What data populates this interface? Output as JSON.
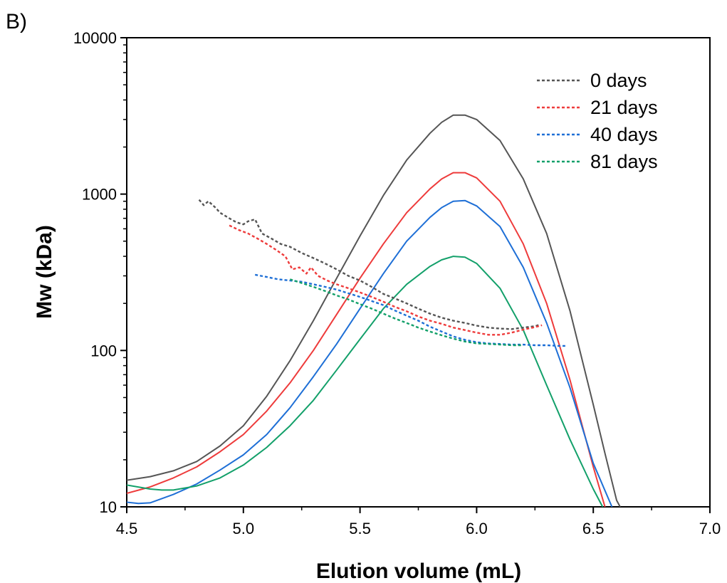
{
  "panel_label": "B)",
  "chart_data": {
    "type": "line",
    "title": "",
    "xlabel": "Elution volume (mL)",
    "ylabel": "Mw (kDa)",
    "xlim": [
      4.5,
      7.0
    ],
    "ylim": [
      10,
      10000
    ],
    "yscale": "log",
    "grid": false,
    "legend_position": "top-right",
    "x_ticks": [
      "4.5",
      "5.0",
      "5.5",
      "6.0",
      "6.5",
      "7.0"
    ],
    "y_ticks": [
      "10",
      "100",
      "1000",
      "10000"
    ],
    "legend": [
      {
        "label": "0 days",
        "color": "#555555"
      },
      {
        "label": "21 days",
        "color": "#ee3b3b"
      },
      {
        "label": "40 days",
        "color": "#1e6fd6"
      },
      {
        "label": "81 days",
        "color": "#13a06a"
      }
    ],
    "series": [
      {
        "name": "0 days",
        "kind": "mw",
        "style": "dotted",
        "color": "#555555",
        "points": [
          [
            4.81,
            920
          ],
          [
            4.83,
            850
          ],
          [
            4.85,
            900
          ],
          [
            4.88,
            820
          ],
          [
            4.9,
            760
          ],
          [
            4.94,
            700
          ],
          [
            4.97,
            660
          ],
          [
            5.0,
            640
          ],
          [
            5.02,
            670
          ],
          [
            5.05,
            690
          ],
          [
            5.08,
            560
          ],
          [
            5.12,
            520
          ],
          [
            5.16,
            480
          ],
          [
            5.2,
            460
          ],
          [
            5.25,
            420
          ],
          [
            5.3,
            390
          ],
          [
            5.35,
            360
          ],
          [
            5.4,
            330
          ],
          [
            5.45,
            300
          ],
          [
            5.5,
            280
          ],
          [
            5.55,
            255
          ],
          [
            5.6,
            230
          ],
          [
            5.65,
            215
          ],
          [
            5.7,
            200
          ],
          [
            5.75,
            185
          ],
          [
            5.8,
            172
          ],
          [
            5.85,
            162
          ],
          [
            5.9,
            155
          ],
          [
            5.95,
            150
          ],
          [
            6.0,
            144
          ],
          [
            6.05,
            140
          ],
          [
            6.1,
            138
          ],
          [
            6.15,
            137
          ],
          [
            6.2,
            140
          ],
          [
            6.25,
            143
          ],
          [
            6.27,
            146
          ]
        ]
      },
      {
        "name": "21 days",
        "kind": "mw",
        "style": "dotted",
        "color": "#ee3b3b",
        "points": [
          [
            4.94,
            630
          ],
          [
            4.98,
            590
          ],
          [
            5.02,
            560
          ],
          [
            5.06,
            520
          ],
          [
            5.1,
            480
          ],
          [
            5.14,
            440
          ],
          [
            5.18,
            400
          ],
          [
            5.21,
            330
          ],
          [
            5.24,
            340
          ],
          [
            5.27,
            310
          ],
          [
            5.29,
            340
          ],
          [
            5.32,
            300
          ],
          [
            5.36,
            280
          ],
          [
            5.4,
            265
          ],
          [
            5.45,
            250
          ],
          [
            5.5,
            235
          ],
          [
            5.55,
            220
          ],
          [
            5.6,
            205
          ],
          [
            5.65,
            190
          ],
          [
            5.7,
            178
          ],
          [
            5.75,
            165
          ],
          [
            5.8,
            155
          ],
          [
            5.85,
            148
          ],
          [
            5.9,
            140
          ],
          [
            5.95,
            135
          ],
          [
            6.0,
            130
          ],
          [
            6.05,
            126
          ],
          [
            6.1,
            126
          ],
          [
            6.15,
            130
          ],
          [
            6.2,
            136
          ],
          [
            6.25,
            141
          ],
          [
            6.28,
            145
          ]
        ]
      },
      {
        "name": "40 days",
        "kind": "mw",
        "style": "dotted",
        "color": "#1e6fd6",
        "points": [
          [
            5.05,
            305
          ],
          [
            5.1,
            295
          ],
          [
            5.15,
            285
          ],
          [
            5.2,
            280
          ],
          [
            5.25,
            275
          ],
          [
            5.3,
            265
          ],
          [
            5.35,
            255
          ],
          [
            5.4,
            245
          ],
          [
            5.45,
            232
          ],
          [
            5.5,
            220
          ],
          [
            5.55,
            207
          ],
          [
            5.6,
            195
          ],
          [
            5.65,
            180
          ],
          [
            5.7,
            167
          ],
          [
            5.75,
            155
          ],
          [
            5.8,
            142
          ],
          [
            5.85,
            132
          ],
          [
            5.9,
            123
          ],
          [
            5.95,
            117
          ],
          [
            6.0,
            113
          ],
          [
            6.05,
            111
          ],
          [
            6.1,
            110
          ],
          [
            6.15,
            109
          ],
          [
            6.2,
            109
          ],
          [
            6.25,
            108
          ],
          [
            6.3,
            108
          ],
          [
            6.35,
            107
          ],
          [
            6.38,
            107
          ]
        ]
      },
      {
        "name": "81 days",
        "kind": "mw",
        "style": "dotted",
        "color": "#13a06a",
        "points": [
          [
            5.2,
            285
          ],
          [
            5.25,
            270
          ],
          [
            5.3,
            255
          ],
          [
            5.35,
            240
          ],
          [
            5.4,
            225
          ],
          [
            5.45,
            212
          ],
          [
            5.5,
            198
          ],
          [
            5.55,
            185
          ],
          [
            5.6,
            172
          ],
          [
            5.65,
            160
          ],
          [
            5.7,
            150
          ],
          [
            5.75,
            140
          ],
          [
            5.8,
            132
          ],
          [
            5.85,
            125
          ],
          [
            5.9,
            119
          ],
          [
            5.95,
            114
          ],
          [
            6.0,
            111
          ],
          [
            6.05,
            110
          ],
          [
            6.1,
            109
          ],
          [
            6.15,
            108
          ],
          [
            6.2,
            108
          ]
        ]
      },
      {
        "name": "0 days",
        "kind": "signal",
        "style": "solid",
        "color": "#555555",
        "points": [
          [
            4.5,
            14.8
          ],
          [
            4.6,
            15.6
          ],
          [
            4.7,
            17
          ],
          [
            4.8,
            19.5
          ],
          [
            4.9,
            24.5
          ],
          [
            5.0,
            33
          ],
          [
            5.1,
            51
          ],
          [
            5.2,
            86
          ],
          [
            5.3,
            155
          ],
          [
            5.4,
            290
          ],
          [
            5.5,
            540
          ],
          [
            5.6,
            980
          ],
          [
            5.7,
            1650
          ],
          [
            5.8,
            2450
          ],
          [
            5.85,
            2880
          ],
          [
            5.9,
            3200
          ],
          [
            5.95,
            3200
          ],
          [
            6.0,
            3000
          ],
          [
            6.1,
            2200
          ],
          [
            6.2,
            1250
          ],
          [
            6.3,
            560
          ],
          [
            6.4,
            180
          ],
          [
            6.5,
            45
          ],
          [
            6.55,
            22
          ],
          [
            6.6,
            11
          ],
          [
            6.615,
            10
          ]
        ]
      },
      {
        "name": "21 days",
        "kind": "signal",
        "style": "solid",
        "color": "#ee3b3b",
        "points": [
          [
            4.5,
            12.2
          ],
          [
            4.6,
            13.4
          ],
          [
            4.7,
            15.3
          ],
          [
            4.8,
            18
          ],
          [
            4.9,
            22.5
          ],
          [
            5.0,
            29
          ],
          [
            5.1,
            41
          ],
          [
            5.2,
            62
          ],
          [
            5.3,
            100
          ],
          [
            5.4,
            170
          ],
          [
            5.5,
            290
          ],
          [
            5.6,
            480
          ],
          [
            5.7,
            760
          ],
          [
            5.8,
            1080
          ],
          [
            5.85,
            1250
          ],
          [
            5.9,
            1370
          ],
          [
            5.95,
            1370
          ],
          [
            6.0,
            1270
          ],
          [
            6.1,
            900
          ],
          [
            6.2,
            480
          ],
          [
            6.3,
            200
          ],
          [
            6.4,
            65
          ],
          [
            6.5,
            18
          ],
          [
            6.55,
            10
          ]
        ]
      },
      {
        "name": "40 days",
        "kind": "signal",
        "style": "solid",
        "color": "#1e6fd6",
        "points": [
          [
            4.5,
            10.7
          ],
          [
            4.55,
            10.5
          ],
          [
            4.6,
            10.6
          ],
          [
            4.7,
            12
          ],
          [
            4.8,
            14
          ],
          [
            4.9,
            17.2
          ],
          [
            5.0,
            21.5
          ],
          [
            5.1,
            29
          ],
          [
            5.2,
            43
          ],
          [
            5.3,
            68
          ],
          [
            5.4,
            110
          ],
          [
            5.5,
            185
          ],
          [
            5.6,
            310
          ],
          [
            5.7,
            500
          ],
          [
            5.8,
            710
          ],
          [
            5.85,
            820
          ],
          [
            5.9,
            900
          ],
          [
            5.95,
            910
          ],
          [
            6.0,
            840
          ],
          [
            6.1,
            620
          ],
          [
            6.2,
            340
          ],
          [
            6.3,
            150
          ],
          [
            6.4,
            58
          ],
          [
            6.5,
            19
          ],
          [
            6.58,
            10
          ]
        ]
      },
      {
        "name": "81 days",
        "kind": "signal",
        "style": "solid",
        "color": "#13a06a",
        "points": [
          [
            4.5,
            13.8
          ],
          [
            4.6,
            13
          ],
          [
            4.65,
            12.8
          ],
          [
            4.7,
            12.8
          ],
          [
            4.8,
            13.6
          ],
          [
            4.9,
            15.3
          ],
          [
            5.0,
            18.5
          ],
          [
            5.1,
            24
          ],
          [
            5.2,
            33
          ],
          [
            5.3,
            48
          ],
          [
            5.4,
            75
          ],
          [
            5.5,
            118
          ],
          [
            5.6,
            185
          ],
          [
            5.7,
            265
          ],
          [
            5.8,
            345
          ],
          [
            5.85,
            380
          ],
          [
            5.9,
            400
          ],
          [
            5.95,
            395
          ],
          [
            6.0,
            360
          ],
          [
            6.1,
            250
          ],
          [
            6.2,
            135
          ],
          [
            6.3,
            60
          ],
          [
            6.4,
            27
          ],
          [
            6.5,
            13
          ],
          [
            6.54,
            10
          ]
        ]
      }
    ]
  }
}
